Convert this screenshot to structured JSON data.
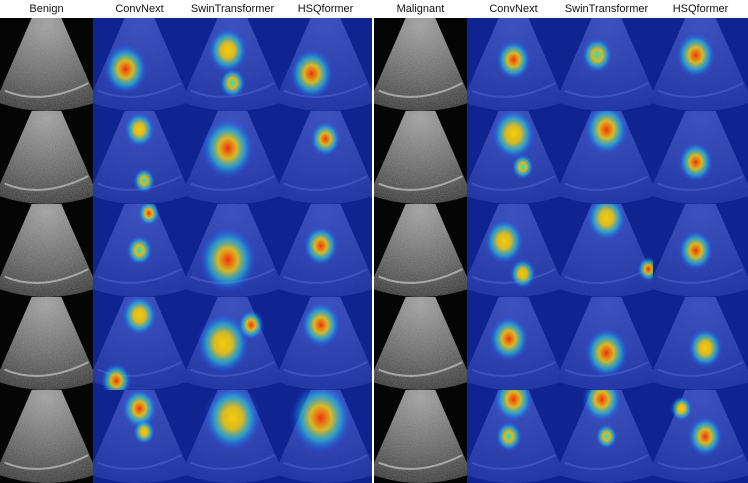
{
  "headers": [
    "Benign",
    "ConvNext",
    "SwinTransformer",
    "HSQformer",
    "Malignant",
    "ConvNext",
    "SwinTransformer",
    "HSQformer"
  ],
  "rows": [
    {
      "benign": [
        0.45,
        0.35
      ],
      "heat": [
        [
          [
            0.35,
            0.55,
            1.0,
            "red"
          ]
        ],
        [
          [
            0.45,
            0.35,
            0.9,
            "yellow"
          ],
          [
            0.5,
            0.7,
            0.6,
            "cyan"
          ]
        ],
        [
          [
            0.35,
            0.6,
            1.0,
            "red"
          ]
        ],
        [
          [
            0.5,
            0.45,
            0.8,
            "red"
          ]
        ],
        [
          [
            0.4,
            0.4,
            0.7,
            "cyan"
          ]
        ],
        [
          [
            0.45,
            0.4,
            0.9,
            "red"
          ]
        ]
      ]
    },
    {
      "benign": [
        0.5,
        0.5
      ],
      "heat": [
        [
          [
            0.5,
            0.2,
            0.7,
            "yellow"
          ],
          [
            0.55,
            0.75,
            0.5,
            "cyan"
          ]
        ],
        [
          [
            0.45,
            0.4,
            1.2,
            "red"
          ]
        ],
        [
          [
            0.5,
            0.3,
            0.7,
            "red"
          ]
        ],
        [
          [
            0.5,
            0.25,
            1.0,
            "yellow"
          ],
          [
            0.6,
            0.6,
            0.5,
            "cyan"
          ]
        ],
        [
          [
            0.5,
            0.2,
            1.0,
            "red"
          ]
        ],
        [
          [
            0.45,
            0.55,
            0.8,
            "red"
          ]
        ]
      ]
    },
    {
      "benign": [
        0.5,
        0.5
      ],
      "heat": [
        [
          [
            0.6,
            0.1,
            0.5,
            "red"
          ],
          [
            0.5,
            0.5,
            0.6,
            "cyan"
          ]
        ],
        [
          [
            0.45,
            0.6,
            1.3,
            "red"
          ]
        ],
        [
          [
            0.45,
            0.45,
            0.8,
            "red"
          ]
        ],
        [
          [
            0.4,
            0.4,
            0.9,
            "yellow"
          ],
          [
            0.6,
            0.75,
            0.6,
            "yellow"
          ]
        ],
        [
          [
            0.5,
            0.15,
            0.9,
            "yellow"
          ],
          [
            0.95,
            0.7,
            0.5,
            "red"
          ]
        ],
        [
          [
            0.45,
            0.5,
            0.8,
            "red"
          ]
        ]
      ]
    },
    {
      "benign": [
        0.5,
        0.5
      ],
      "heat": [
        [
          [
            0.5,
            0.2,
            0.8,
            "yellow"
          ],
          [
            0.25,
            0.9,
            0.7,
            "red"
          ]
        ],
        [
          [
            0.4,
            0.5,
            1.2,
            "yellow"
          ],
          [
            0.7,
            0.3,
            0.6,
            "red"
          ]
        ],
        [
          [
            0.45,
            0.3,
            0.9,
            "red"
          ]
        ],
        [
          [
            0.45,
            0.45,
            0.9,
            "red"
          ]
        ],
        [
          [
            0.5,
            0.6,
            1.0,
            "red"
          ]
        ],
        [
          [
            0.55,
            0.55,
            0.8,
            "yellow"
          ]
        ]
      ]
    },
    {
      "benign": [
        0.5,
        0.55
      ],
      "heat": [
        [
          [
            0.5,
            0.2,
            0.8,
            "red"
          ],
          [
            0.55,
            0.45,
            0.5,
            "yellow"
          ]
        ],
        [
          [
            0.5,
            0.3,
            1.3,
            "yellow"
          ]
        ],
        [
          [
            0.45,
            0.3,
            1.4,
            "red"
          ]
        ],
        [
          [
            0.5,
            0.1,
            0.9,
            "red"
          ],
          [
            0.45,
            0.5,
            0.6,
            "cyan"
          ]
        ],
        [
          [
            0.45,
            0.1,
            0.9,
            "red"
          ],
          [
            0.5,
            0.5,
            0.5,
            "cyan"
          ]
        ],
        [
          [
            0.55,
            0.5,
            0.8,
            "red"
          ],
          [
            0.3,
            0.2,
            0.5,
            "yellow"
          ]
        ]
      ]
    }
  ]
}
